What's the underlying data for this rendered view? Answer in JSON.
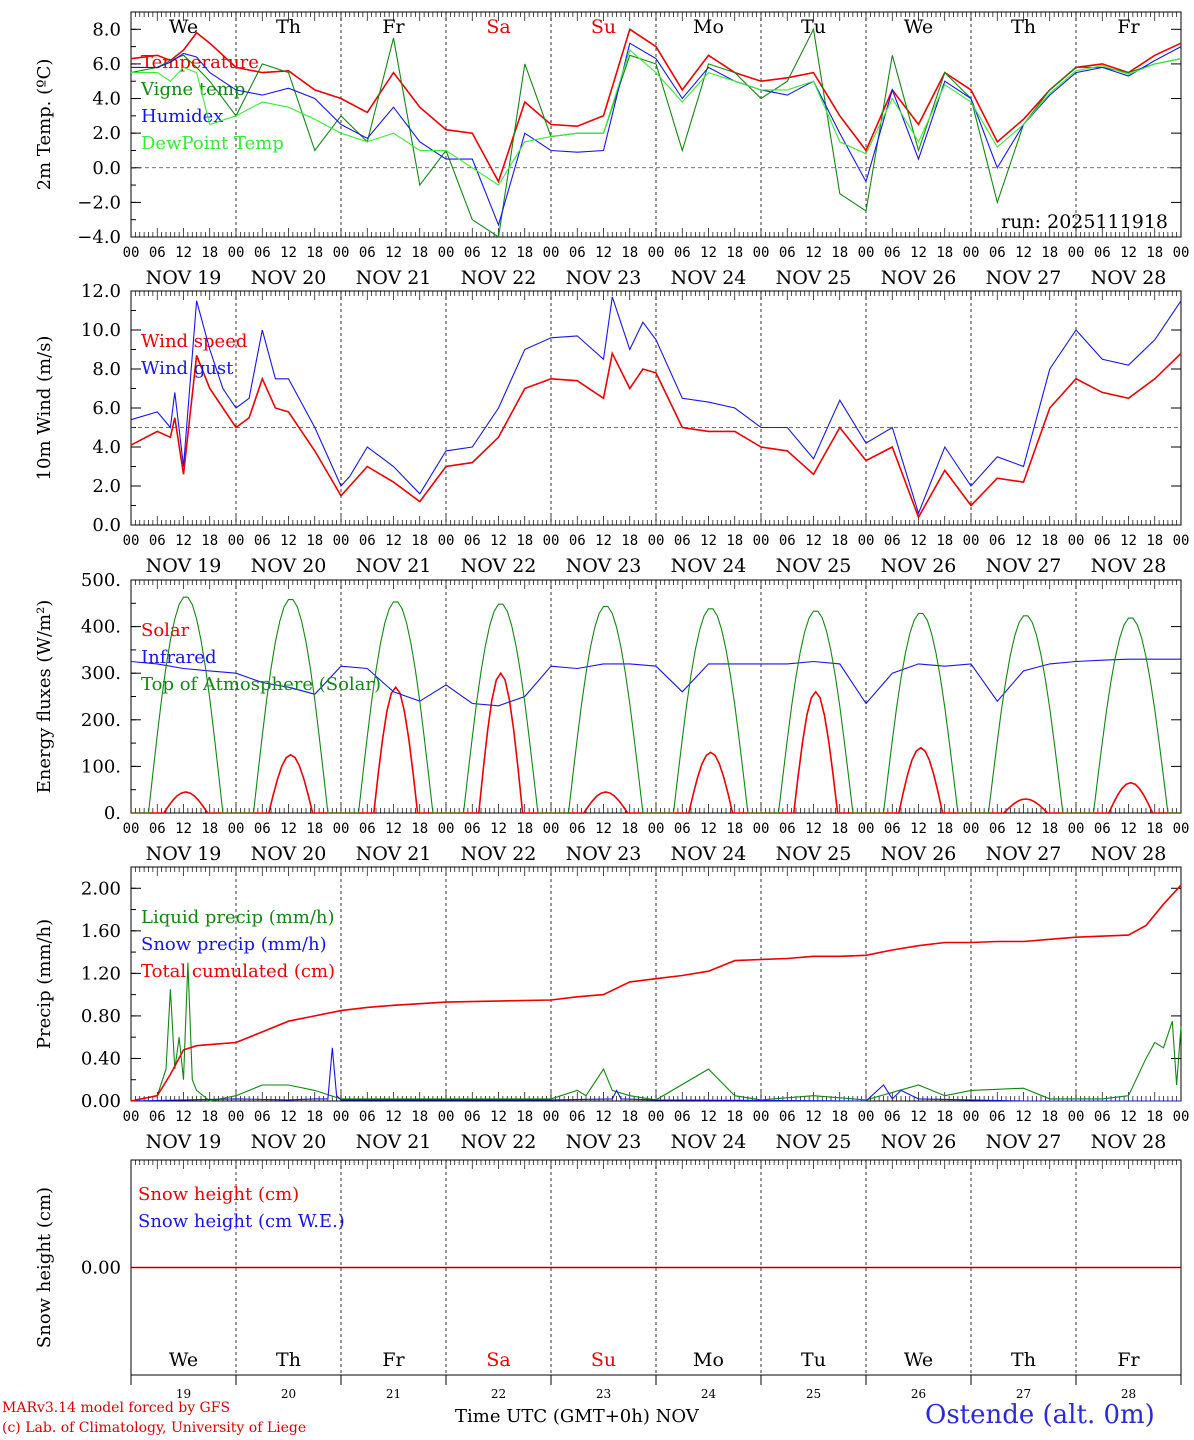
{
  "meta": {
    "run_label": "run: 2025111918",
    "x_title": "Time UTC (GMT+0h)",
    "x_month": "NOV",
    "credit_line1": "MARv3.14 model forced by GFS",
    "credit_line2": "(c) Lab. of Climatology, University of Liege",
    "station": "Ostende (alt. 0m)"
  },
  "colors": {
    "red": "#ee0000",
    "green": "#118811",
    "blue": "#1515ee",
    "light_green": "#33ee33",
    "weekend": "#ee0000",
    "axis": "#000000"
  },
  "day_names": [
    "We",
    "Th",
    "Fr",
    "Sa",
    "Su",
    "Mo",
    "Tu",
    "We",
    "Th",
    "Fr"
  ],
  "weekend_days": [
    "Sa",
    "Su"
  ],
  "day_dates": [
    "NOV 19",
    "NOV 20",
    "NOV 21",
    "NOV 22",
    "NOV 23",
    "NOV 24",
    "NOV 25",
    "NOV 26",
    "NOV 27",
    "NOV 28"
  ],
  "day_numbers": [
    "19",
    "20",
    "21",
    "22",
    "23",
    "24",
    "25",
    "26",
    "27",
    "28"
  ],
  "hour_labels": [
    "00",
    "06",
    "12",
    "18"
  ],
  "chart_data": [
    {
      "type": "line",
      "id": "temp",
      "ylabel": "2m Temp. (ºC)",
      "ylim": [
        -4,
        9
      ],
      "yticks": [
        -4,
        -2,
        0,
        2,
        4,
        6,
        8
      ],
      "ytick_labels": [
        "−4.0",
        "−2.0",
        "0.0",
        "2.0",
        "4.0",
        "6.0",
        "8.0"
      ],
      "refline": 0,
      "x_unit": "hours since Nov 19 00 UTC",
      "series": [
        {
          "name": "Temperature",
          "color": "red",
          "x": [
            0,
            6,
            9,
            12,
            15,
            18,
            24,
            30,
            36,
            42,
            48,
            54,
            60,
            66,
            72,
            78,
            84,
            90,
            96,
            102,
            108,
            114,
            120,
            126,
            132,
            138,
            144,
            150,
            156,
            162,
            168,
            174,
            180,
            186,
            192,
            198,
            204,
            210,
            216,
            222,
            228,
            234,
            240
          ],
          "y": [
            6.3,
            6.5,
            6.2,
            6.8,
            7.8,
            7.2,
            5.8,
            5.5,
            5.6,
            4.5,
            4.0,
            3.2,
            5.5,
            3.5,
            2.2,
            2.0,
            -0.8,
            3.8,
            2.5,
            2.4,
            3.0,
            8.0,
            7.0,
            4.5,
            6.5,
            5.5,
            5.0,
            5.2,
            5.5,
            3.0,
            1.0,
            4.5,
            2.5,
            5.5,
            4.5,
            1.5,
            2.8,
            4.5,
            5.8,
            6.0,
            5.5,
            6.5,
            7.2
          ]
        },
        {
          "name": "Vigne temp",
          "color": "green",
          "x": [
            0,
            6,
            9,
            12,
            15,
            18,
            24,
            30,
            36,
            42,
            48,
            54,
            60,
            66,
            72,
            78,
            84,
            90,
            96,
            102,
            108,
            114,
            120,
            126,
            132,
            138,
            144,
            150,
            156,
            162,
            168,
            174,
            180,
            186,
            192,
            198,
            204,
            210,
            216,
            222,
            228,
            234,
            240
          ],
          "y": [
            5.5,
            5.8,
            6.2,
            6.5,
            5.8,
            5.0,
            3.0,
            6.0,
            5.5,
            1.0,
            3.0,
            1.5,
            7.5,
            -1.0,
            1.0,
            -3.0,
            -4.0,
            6.0,
            1.8,
            2.0,
            2.0,
            6.5,
            6.0,
            1.0,
            6.0,
            5.5,
            4.0,
            5.0,
            8.0,
            -1.5,
            -2.5,
            6.5,
            1.0,
            5.5,
            4.0,
            -2.0,
            2.5,
            4.5,
            5.8,
            5.8,
            5.5,
            6.0,
            6.3
          ]
        },
        {
          "name": "Humidex",
          "color": "blue",
          "x": [
            0,
            6,
            9,
            12,
            15,
            18,
            24,
            30,
            36,
            42,
            48,
            54,
            60,
            66,
            72,
            78,
            84,
            90,
            96,
            102,
            108,
            114,
            120,
            126,
            132,
            138,
            144,
            150,
            156,
            162,
            168,
            174,
            180,
            186,
            192,
            198,
            204,
            210,
            216,
            222,
            228,
            234,
            240
          ],
          "y": [
            5.8,
            5.8,
            6.1,
            6.6,
            6.4,
            5.5,
            4.5,
            4.2,
            4.6,
            4.0,
            2.5,
            1.7,
            3.5,
            1.5,
            0.5,
            0.5,
            -3.3,
            2.0,
            1.0,
            0.9,
            1.0,
            7.2,
            6.3,
            4.0,
            5.8,
            5.0,
            4.5,
            4.2,
            5.0,
            2.0,
            -0.8,
            4.5,
            0.5,
            5.0,
            4.0,
            0.0,
            2.5,
            4.2,
            5.5,
            5.8,
            5.3,
            6.2,
            7.0
          ]
        },
        {
          "name": "DewPoint Temp",
          "color": "light_green",
          "x": [
            0,
            6,
            9,
            12,
            15,
            18,
            24,
            30,
            36,
            42,
            48,
            54,
            60,
            66,
            72,
            78,
            84,
            90,
            96,
            102,
            108,
            114,
            120,
            126,
            132,
            138,
            144,
            150,
            156,
            162,
            168,
            174,
            180,
            186,
            192,
            198,
            204,
            210,
            216,
            222,
            228,
            234,
            240
          ],
          "y": [
            5.5,
            5.5,
            5.0,
            5.8,
            5.5,
            2.5,
            3.0,
            3.8,
            3.5,
            2.8,
            2.0,
            1.5,
            2.0,
            1.0,
            1.0,
            0.0,
            -1.0,
            1.5,
            1.8,
            2.0,
            2.0,
            6.8,
            5.5,
            3.8,
            5.5,
            5.0,
            4.5,
            4.5,
            5.0,
            1.5,
            0.8,
            4.0,
            1.5,
            4.8,
            3.8,
            1.2,
            2.5,
            4.3,
            5.6,
            5.9,
            5.4,
            6.0,
            6.3
          ]
        }
      ]
    },
    {
      "type": "line",
      "id": "wind",
      "ylabel": "10m Wind (m/s)",
      "ylim": [
        0,
        12
      ],
      "yticks": [
        0,
        2,
        4,
        6,
        8,
        10,
        12
      ],
      "ytick_labels": [
        "0.0",
        "2.0",
        "4.0",
        "6.0",
        "8.0",
        "10.0",
        "12.0"
      ],
      "refline": 5,
      "series": [
        {
          "name": "Wind speed",
          "color": "red",
          "x": [
            0,
            6,
            9,
            10,
            12,
            15,
            18,
            21,
            24,
            27,
            30,
            33,
            36,
            42,
            48,
            50,
            54,
            60,
            66,
            72,
            78,
            84,
            90,
            96,
            102,
            108,
            110,
            114,
            117,
            120,
            126,
            132,
            138,
            144,
            150,
            156,
            162,
            168,
            174,
            180,
            186,
            192,
            198,
            204,
            210,
            216,
            222,
            228,
            234,
            240
          ],
          "y": [
            4.1,
            4.8,
            4.5,
            5.5,
            2.6,
            8.7,
            7.0,
            6.0,
            5.0,
            5.5,
            7.5,
            6.0,
            5.8,
            3.8,
            1.5,
            2.0,
            3.0,
            2.2,
            1.2,
            3.0,
            3.2,
            4.5,
            7.0,
            7.5,
            7.4,
            6.5,
            8.8,
            7.0,
            8.0,
            7.8,
            5.0,
            4.8,
            4.8,
            4.0,
            3.8,
            2.6,
            5.0,
            3.3,
            4.0,
            0.4,
            2.8,
            1.0,
            2.4,
            2.2,
            6.0,
            7.5,
            6.8,
            6.5,
            7.5,
            8.8
          ]
        },
        {
          "name": "Wind gust",
          "color": "blue",
          "x": [
            0,
            6,
            9,
            10,
            12,
            15,
            18,
            21,
            24,
            27,
            30,
            33,
            36,
            42,
            48,
            50,
            54,
            60,
            66,
            72,
            78,
            84,
            90,
            96,
            102,
            108,
            110,
            114,
            117,
            120,
            126,
            132,
            138,
            144,
            150,
            156,
            162,
            168,
            174,
            180,
            186,
            192,
            198,
            204,
            210,
            216,
            222,
            228,
            234,
            240
          ],
          "y": [
            5.4,
            5.8,
            5.0,
            6.8,
            3.0,
            11.5,
            9.0,
            7.0,
            6.0,
            6.5,
            10.0,
            7.5,
            7.5,
            5.0,
            2.0,
            2.5,
            4.0,
            3.0,
            1.6,
            3.8,
            4.0,
            6.0,
            9.0,
            9.6,
            9.7,
            8.5,
            11.7,
            9.0,
            10.4,
            9.5,
            6.5,
            6.3,
            6.0,
            5.0,
            5.0,
            3.4,
            6.4,
            4.2,
            5.0,
            0.6,
            4.0,
            2.0,
            3.5,
            3.0,
            8.0,
            10.0,
            8.5,
            8.2,
            9.5,
            11.5
          ]
        }
      ]
    },
    {
      "type": "line",
      "id": "flux",
      "ylabel": "Energy fluxes (W/m²)",
      "ylim": [
        0,
        500
      ],
      "yticks": [
        0,
        100,
        200,
        300,
        400,
        500
      ],
      "ytick_labels": [
        "0.",
        "100.",
        "200.",
        "300.",
        "400.",
        "500."
      ],
      "series": [
        {
          "name": "Solar",
          "color": "red",
          "day_peaks": [
            45,
            125,
            270,
            300,
            45,
            130,
            260,
            140,
            30,
            65
          ]
        },
        {
          "name": "Infrared",
          "color": "blue",
          "x": [
            0,
            6,
            12,
            18,
            24,
            30,
            36,
            42,
            48,
            54,
            60,
            66,
            72,
            78,
            84,
            90,
            96,
            102,
            108,
            114,
            120,
            126,
            132,
            138,
            144,
            150,
            156,
            162,
            168,
            174,
            180,
            186,
            192,
            198,
            204,
            210,
            216,
            222,
            228,
            234,
            240
          ],
          "y": [
            325,
            320,
            310,
            305,
            300,
            280,
            270,
            255,
            315,
            310,
            260,
            240,
            275,
            235,
            230,
            250,
            315,
            310,
            320,
            320,
            315,
            260,
            320,
            320,
            320,
            320,
            325,
            320,
            235,
            300,
            320,
            315,
            320,
            240,
            305,
            320,
            325,
            328,
            330,
            330,
            330
          ]
        },
        {
          "name": "Top of Atmosphere (Solar)",
          "color": "green",
          "day_peaks": [
            465,
            460,
            455,
            450,
            445,
            440,
            435,
            430,
            425,
            420
          ]
        }
      ]
    },
    {
      "type": "line",
      "id": "precip",
      "ylabel": "Precip (mm/h)",
      "ylim": [
        0,
        2.2
      ],
      "yticks": [
        0,
        0.4,
        0.8,
        1.2,
        1.6,
        2.0
      ],
      "ytick_labels": [
        "0.00",
        "0.40",
        "0.80",
        "1.20",
        "1.60",
        "2.00"
      ],
      "series": [
        {
          "name": "Liquid precip (mm/h)",
          "color": "green",
          "x": [
            0,
            6,
            8,
            9,
            10,
            11,
            12,
            13,
            14,
            15,
            18,
            24,
            30,
            36,
            42,
            48,
            72,
            96,
            102,
            104,
            108,
            110,
            114,
            120,
            132,
            138,
            144,
            156,
            168,
            180,
            186,
            192,
            204,
            210,
            216,
            222,
            228,
            232,
            234,
            236,
            238,
            239,
            240
          ],
          "y": [
            0.0,
            0.05,
            0.3,
            1.05,
            0.3,
            0.6,
            0.2,
            1.3,
            0.2,
            0.1,
            0.0,
            0.05,
            0.15,
            0.15,
            0.1,
            0.02,
            0.02,
            0.02,
            0.1,
            0.05,
            0.3,
            0.1,
            0.05,
            0.01,
            0.3,
            0.05,
            0.01,
            0.05,
            0.01,
            0.15,
            0.05,
            0.1,
            0.12,
            0.02,
            0.02,
            0.02,
            0.05,
            0.4,
            0.55,
            0.5,
            0.75,
            0.15,
            0.7
          ]
        },
        {
          "name": "Snow precip (mm/h)",
          "color": "blue",
          "x": [
            0,
            12,
            24,
            36,
            42,
            45,
            46,
            47,
            48,
            72,
            96,
            110,
            111,
            112,
            120,
            168,
            172,
            174,
            176,
            180,
            192,
            204,
            216,
            228,
            240
          ],
          "y": [
            0,
            0.01,
            0.02,
            0.01,
            0.02,
            0.02,
            0.5,
            0.05,
            0.01,
            0.01,
            0.01,
            0.02,
            0.1,
            0.02,
            0.01,
            0.0,
            0.15,
            0.02,
            0.1,
            0.02,
            0.01,
            0.0,
            0.0,
            0.0,
            0.0
          ]
        },
        {
          "name": "Total cumulated (cm)",
          "color": "red",
          "x": [
            0,
            6,
            9,
            12,
            15,
            18,
            24,
            30,
            36,
            42,
            48,
            54,
            60,
            72,
            96,
            102,
            108,
            114,
            120,
            126,
            132,
            138,
            144,
            150,
            156,
            162,
            168,
            174,
            180,
            186,
            192,
            198,
            204,
            210,
            216,
            228,
            232,
            236,
            240
          ],
          "y": [
            0,
            0.05,
            0.25,
            0.48,
            0.52,
            0.53,
            0.55,
            0.65,
            0.75,
            0.8,
            0.85,
            0.88,
            0.9,
            0.93,
            0.95,
            0.98,
            1.0,
            1.12,
            1.15,
            1.18,
            1.22,
            1.32,
            1.33,
            1.34,
            1.36,
            1.36,
            1.37,
            1.42,
            1.46,
            1.49,
            1.49,
            1.5,
            1.5,
            1.52,
            1.54,
            1.56,
            1.65,
            1.85,
            2.03
          ]
        }
      ]
    },
    {
      "type": "line",
      "id": "snow",
      "ylabel": "Snow height (cm)",
      "ylim": [
        -1,
        1
      ],
      "yticks": [
        0
      ],
      "ytick_labels": [
        "0.00"
      ],
      "series": [
        {
          "name": "Snow height (cm)",
          "color": "red",
          "x": [
            0,
            240
          ],
          "y": [
            0,
            0
          ]
        },
        {
          "name": "Snow height (cm W.E.)",
          "color": "blue",
          "x": [
            0,
            240
          ],
          "y": [
            0,
            0
          ]
        }
      ]
    }
  ]
}
